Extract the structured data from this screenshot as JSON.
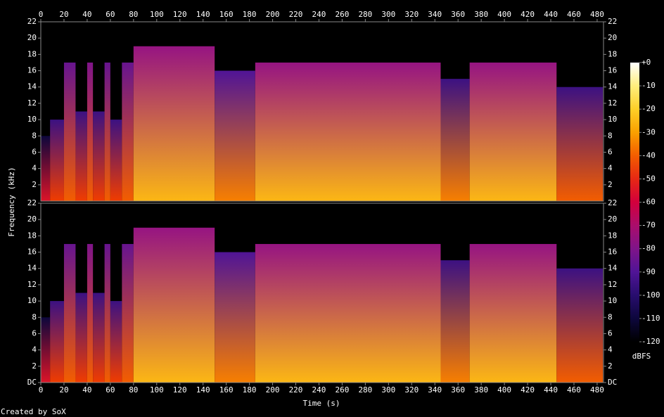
{
  "chart_data": [
    {
      "type": "spectrogram",
      "y_label": "Frequency (kHz)",
      "xlim": [
        0,
        485.5
      ],
      "xticks": [
        0,
        20,
        40,
        60,
        80,
        100,
        120,
        140,
        160,
        180,
        200,
        220,
        240,
        260,
        280,
        300,
        320,
        340,
        360,
        380,
        400,
        420,
        440,
        460,
        480
      ],
      "ylim": [
        0,
        22
      ],
      "yticks": [
        2,
        4,
        6,
        8,
        10,
        12,
        14,
        16,
        18,
        20,
        22
      ],
      "segments": {
        "x": [
          0,
          8,
          20,
          30,
          40,
          45,
          55,
          60,
          70,
          80,
          150,
          185,
          345,
          370,
          445,
          485
        ],
        "cutoff": [
          8,
          10,
          17,
          11,
          17,
          11,
          17,
          10,
          17,
          19,
          16,
          17,
          15,
          17,
          14
        ],
        "level_low": [
          -55,
          -45,
          -40,
          -45,
          -40,
          -45,
          -40,
          -45,
          -40,
          -25,
          -35,
          -25,
          -35,
          -25,
          -40
        ],
        "level_high": [
          -110,
          -95,
          -85,
          -95,
          -80,
          -95,
          -85,
          -95,
          -85,
          -75,
          -90,
          -75,
          -95,
          -75,
          -95
        ]
      },
      "colorbar": {
        "lim": [
          -120,
          0
        ],
        "label": "dBFS",
        "ticks": [
          {
            "value": 0,
            "label": "+0"
          },
          -10,
          -20,
          -30,
          -40,
          -50,
          -60,
          -70,
          -80,
          -90,
          -100,
          -110,
          -120
        ]
      }
    },
    {
      "type": "spectrogram",
      "x_label": "Time (s)",
      "xlim": [
        0,
        485.5
      ],
      "xticks": [
        0,
        20,
        40,
        60,
        80,
        100,
        120,
        140,
        160,
        180,
        200,
        220,
        240,
        260,
        280,
        300,
        320,
        340,
        360,
        380,
        400,
        420,
        440,
        460,
        480
      ],
      "ylim": [
        0,
        22
      ],
      "yticks": [
        {
          "value": 0,
          "label": "DC"
        },
        2,
        4,
        6,
        8,
        10,
        12,
        14,
        16,
        18,
        20,
        22
      ],
      "segments": {
        "x": [
          0,
          8,
          20,
          30,
          40,
          45,
          55,
          60,
          70,
          80,
          150,
          185,
          345,
          370,
          445,
          485
        ],
        "cutoff": [
          8,
          10,
          17,
          11,
          17,
          11,
          17,
          10,
          17,
          19,
          16,
          17,
          15,
          17,
          14
        ],
        "level_low": [
          -55,
          -45,
          -40,
          -45,
          -40,
          -45,
          -40,
          -45,
          -40,
          -25,
          -35,
          -25,
          -35,
          -25,
          -40
        ],
        "level_high": [
          -110,
          -95,
          -85,
          -95,
          -80,
          -95,
          -85,
          -95,
          -85,
          -75,
          -90,
          -75,
          -95,
          -75,
          -95
        ]
      }
    }
  ],
  "footer": "Created by SoX"
}
